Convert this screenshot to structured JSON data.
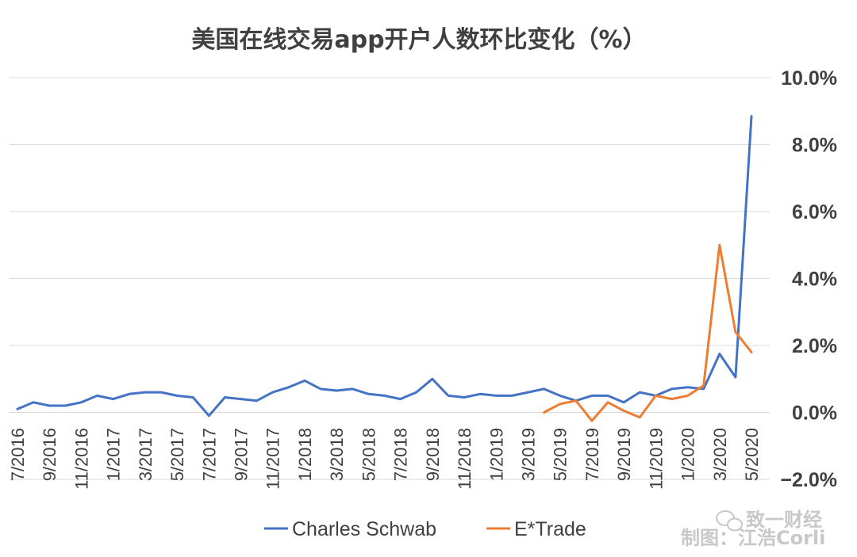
{
  "chart_data": {
    "type": "line",
    "title": "美国在线交易app开户人数环比变化（%）",
    "xlabel": "",
    "ylabel": "",
    "ylim": [
      -2.0,
      10.0
    ],
    "y_ticks": [
      "10.0%",
      "8.0%",
      "6.0%",
      "4.0%",
      "2.0%",
      "0.0%",
      "−2.0%"
    ],
    "y_tick_values": [
      10,
      8,
      6,
      4,
      2,
      0,
      -2
    ],
    "grid": true,
    "legend_position": "bottom",
    "x": [
      "7/2016",
      "8/2016",
      "9/2016",
      "10/2016",
      "11/2016",
      "12/2016",
      "1/2017",
      "2/2017",
      "3/2017",
      "4/2017",
      "5/2017",
      "6/2017",
      "7/2017",
      "8/2017",
      "9/2017",
      "10/2017",
      "11/2017",
      "12/2017",
      "1/2018",
      "2/2018",
      "3/2018",
      "4/2018",
      "5/2018",
      "6/2018",
      "7/2018",
      "8/2018",
      "9/2018",
      "10/2018",
      "11/2018",
      "12/2018",
      "1/2019",
      "2/2019",
      "3/2019",
      "4/2019",
      "5/2019",
      "6/2019",
      "7/2019",
      "8/2019",
      "9/2019",
      "10/2019",
      "11/2019",
      "12/2019",
      "1/2020",
      "2/2020",
      "3/2020",
      "4/2020",
      "5/2020"
    ],
    "x_tick_labels": [
      "7/2016",
      "9/2016",
      "11/2016",
      "1/2017",
      "3/2017",
      "5/2017",
      "7/2017",
      "9/2017",
      "11/2017",
      "1/2018",
      "3/2018",
      "5/2018",
      "7/2018",
      "9/2018",
      "11/2018",
      "1/2019",
      "3/2019",
      "5/2019",
      "7/2019",
      "9/2019",
      "11/2019",
      "1/2020",
      "3/2020",
      "5/2020"
    ],
    "series": [
      {
        "name": "Charles Schwab",
        "color": "#4472C4",
        "values": [
          0.1,
          0.3,
          0.2,
          0.2,
          0.3,
          0.5,
          0.4,
          0.55,
          0.6,
          0.6,
          0.5,
          0.45,
          -0.1,
          0.45,
          0.4,
          0.35,
          0.6,
          0.75,
          0.95,
          0.7,
          0.65,
          0.7,
          0.55,
          0.5,
          0.4,
          0.6,
          1.0,
          0.5,
          0.45,
          0.55,
          0.5,
          0.5,
          0.6,
          0.7,
          0.5,
          0.35,
          0.5,
          0.5,
          0.3,
          0.6,
          0.5,
          0.7,
          0.75,
          0.7,
          1.75,
          1.05,
          8.85
        ]
      },
      {
        "name": "E*Trade",
        "color": "#ED7D31",
        "values": [
          null,
          null,
          null,
          null,
          null,
          null,
          null,
          null,
          null,
          null,
          null,
          null,
          null,
          null,
          null,
          null,
          null,
          null,
          null,
          null,
          null,
          null,
          null,
          null,
          null,
          null,
          null,
          null,
          null,
          null,
          null,
          null,
          null,
          0.0,
          0.25,
          0.35,
          -0.25,
          0.3,
          0.05,
          -0.15,
          0.5,
          0.4,
          0.5,
          0.8,
          5.0,
          2.4,
          1.8
        ]
      }
    ]
  },
  "watermark": {
    "brand": "致一财经",
    "credit": "制图：江浩Corli"
  }
}
